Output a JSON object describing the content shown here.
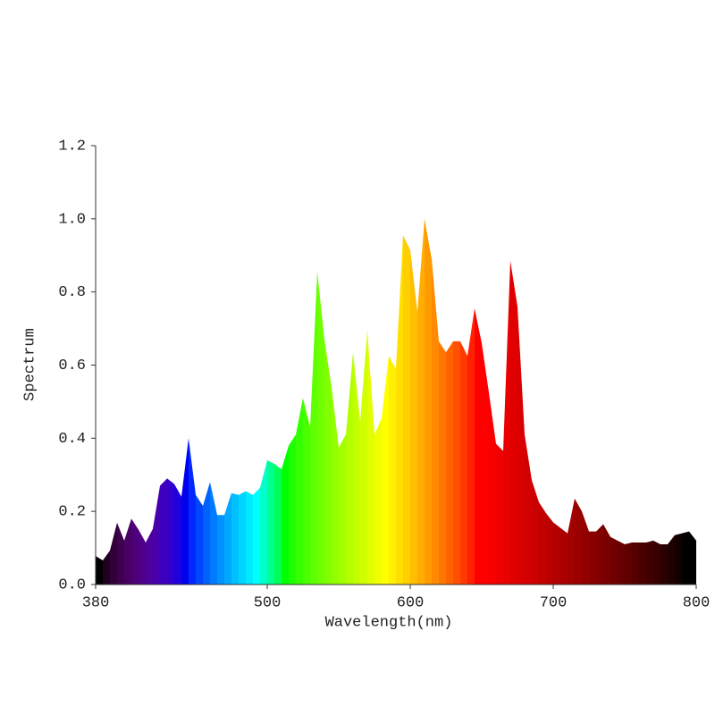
{
  "chart_data": {
    "type": "area",
    "xlabel": "Wavelength(nm)",
    "ylabel": "Spectrum",
    "x": [
      380,
      385,
      390,
      395,
      400,
      405,
      410,
      415,
      420,
      425,
      430,
      435,
      440,
      445,
      450,
      455,
      460,
      465,
      470,
      475,
      480,
      485,
      490,
      495,
      500,
      505,
      510,
      515,
      520,
      525,
      530,
      535,
      540,
      545,
      550,
      555,
      560,
      565,
      570,
      575,
      580,
      585,
      590,
      595,
      600,
      605,
      610,
      615,
      620,
      625,
      630,
      635,
      640,
      645,
      650,
      655,
      660,
      665,
      670,
      675,
      680,
      685,
      690,
      695,
      700,
      705,
      710,
      715,
      720,
      725,
      730,
      735,
      740,
      745,
      750,
      755,
      760,
      765,
      770,
      775,
      780,
      785,
      790,
      795,
      800
    ],
    "values": [
      0.078,
      0.066,
      0.093,
      0.169,
      0.12,
      0.18,
      0.15,
      0.115,
      0.152,
      0.27,
      0.29,
      0.275,
      0.24,
      0.4,
      0.245,
      0.215,
      0.28,
      0.19,
      0.19,
      0.25,
      0.245,
      0.255,
      0.245,
      0.265,
      0.34,
      0.33,
      0.315,
      0.38,
      0.41,
      0.51,
      0.43,
      0.855,
      0.67,
      0.54,
      0.375,
      0.41,
      0.635,
      0.445,
      0.695,
      0.41,
      0.455,
      0.625,
      0.59,
      0.955,
      0.915,
      0.745,
      1.0,
      0.89,
      0.665,
      0.635,
      0.665,
      0.665,
      0.625,
      0.755,
      0.66,
      0.525,
      0.385,
      0.365,
      0.885,
      0.76,
      0.41,
      0.285,
      0.225,
      0.195,
      0.17,
      0.155,
      0.14,
      0.235,
      0.2,
      0.145,
      0.145,
      0.165,
      0.13,
      0.12,
      0.11,
      0.115,
      0.115,
      0.115,
      0.12,
      0.11,
      0.11,
      0.135,
      0.14,
      0.145,
      0.12
    ],
    "xlim": [
      380,
      800
    ],
    "xticks": [
      380,
      500,
      600,
      700,
      800
    ],
    "ylim": [
      0,
      1.2
    ],
    "yticks": [
      {
        "value": 0,
        "label": "0.0"
      },
      0.2,
      0.4,
      0.6,
      0.8,
      {
        "value": 1,
        "label": "1.0"
      },
      1.2
    ]
  }
}
